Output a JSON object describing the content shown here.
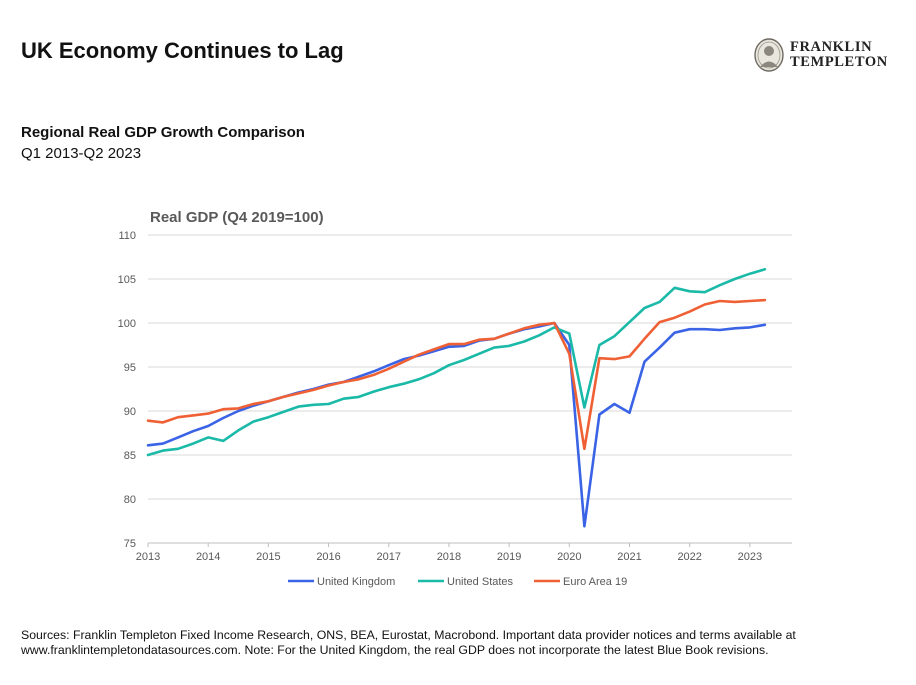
{
  "header": {
    "title": "UK Economy Continues to Lag",
    "logo_line1": "FRANKLIN",
    "logo_line2": "TEMPLETON"
  },
  "subtitle": "Regional Real GDP Growth Comparison",
  "date_range": "Q1 2013-Q2 2023",
  "footer": {
    "line1": "Sources: Franklin Templeton Fixed Income Research, ONS, BEA, Eurostat, Macrobond. Important data provider notices and terms available at",
    "line2": "www.franklintempletondatasources.com. Note: For the United Kingdom, the real GDP does not incorporate the latest Blue Book revisions."
  },
  "chart_data": {
    "type": "line",
    "title": "Real GDP (Q4 2019=100)",
    "xlabel": "",
    "ylabel": "",
    "x": [
      2013.0,
      2013.25,
      2013.5,
      2013.75,
      2014.0,
      2014.25,
      2014.5,
      2014.75,
      2015.0,
      2015.25,
      2015.5,
      2015.75,
      2016.0,
      2016.25,
      2016.5,
      2016.75,
      2017.0,
      2017.25,
      2017.5,
      2017.75,
      2018.0,
      2018.25,
      2018.5,
      2018.75,
      2019.0,
      2019.25,
      2019.5,
      2019.75,
      2020.0,
      2020.25,
      2020.5,
      2020.75,
      2021.0,
      2021.25,
      2021.5,
      2021.75,
      2022.0,
      2022.25,
      2022.5,
      2022.75,
      2023.0,
      2023.25
    ],
    "xlim": [
      2013,
      2023.7
    ],
    "xticks": [
      "2013",
      "2014",
      "2015",
      "2016",
      "2017",
      "2018",
      "2019",
      "2020",
      "2021",
      "2022",
      "2023"
    ],
    "ylim": [
      75,
      110
    ],
    "yticks": [
      "75",
      "80",
      "85",
      "90",
      "95",
      "100",
      "105",
      "110"
    ],
    "grid": "horizontal",
    "legend_position": "bottom",
    "series": [
      {
        "name": "United Kingdom",
        "color": "#3a63e6",
        "values": [
          86.1,
          86.3,
          87.0,
          87.7,
          88.3,
          89.2,
          90.0,
          90.6,
          91.1,
          91.6,
          92.1,
          92.5,
          93.0,
          93.3,
          93.9,
          94.5,
          95.2,
          95.9,
          96.3,
          96.8,
          97.3,
          97.4,
          98.0,
          98.2,
          98.8,
          99.3,
          99.6,
          100.0,
          97.5,
          76.9,
          89.6,
          90.8,
          89.8,
          95.6,
          97.2,
          98.9,
          99.3,
          99.3,
          99.2,
          99.4,
          99.5,
          99.8
        ]
      },
      {
        "name": "United States",
        "color": "#1ab9a8",
        "values": [
          85.0,
          85.5,
          85.7,
          86.3,
          87.0,
          86.6,
          87.8,
          88.8,
          89.3,
          89.9,
          90.5,
          90.7,
          90.8,
          91.4,
          91.6,
          92.2,
          92.7,
          93.1,
          93.6,
          94.3,
          95.2,
          95.8,
          96.5,
          97.2,
          97.4,
          97.9,
          98.6,
          99.5,
          98.8,
          90.4,
          97.5,
          98.5,
          100.1,
          101.7,
          102.4,
          104.0,
          103.6,
          103.5,
          104.3,
          105.0,
          105.6,
          106.1
        ]
      },
      {
        "name": "Euro Area 19",
        "color": "#ef6035",
        "values": [
          88.9,
          88.7,
          89.3,
          89.5,
          89.7,
          90.2,
          90.3,
          90.8,
          91.1,
          91.6,
          92.0,
          92.4,
          92.9,
          93.3,
          93.6,
          94.1,
          94.8,
          95.6,
          96.4,
          97.0,
          97.6,
          97.6,
          98.1,
          98.2,
          98.8,
          99.4,
          99.8,
          100.0,
          96.5,
          85.7,
          96.0,
          95.9,
          96.2,
          98.2,
          100.1,
          100.6,
          101.3,
          102.1,
          102.5,
          102.4,
          102.5,
          102.6
        ]
      }
    ]
  }
}
